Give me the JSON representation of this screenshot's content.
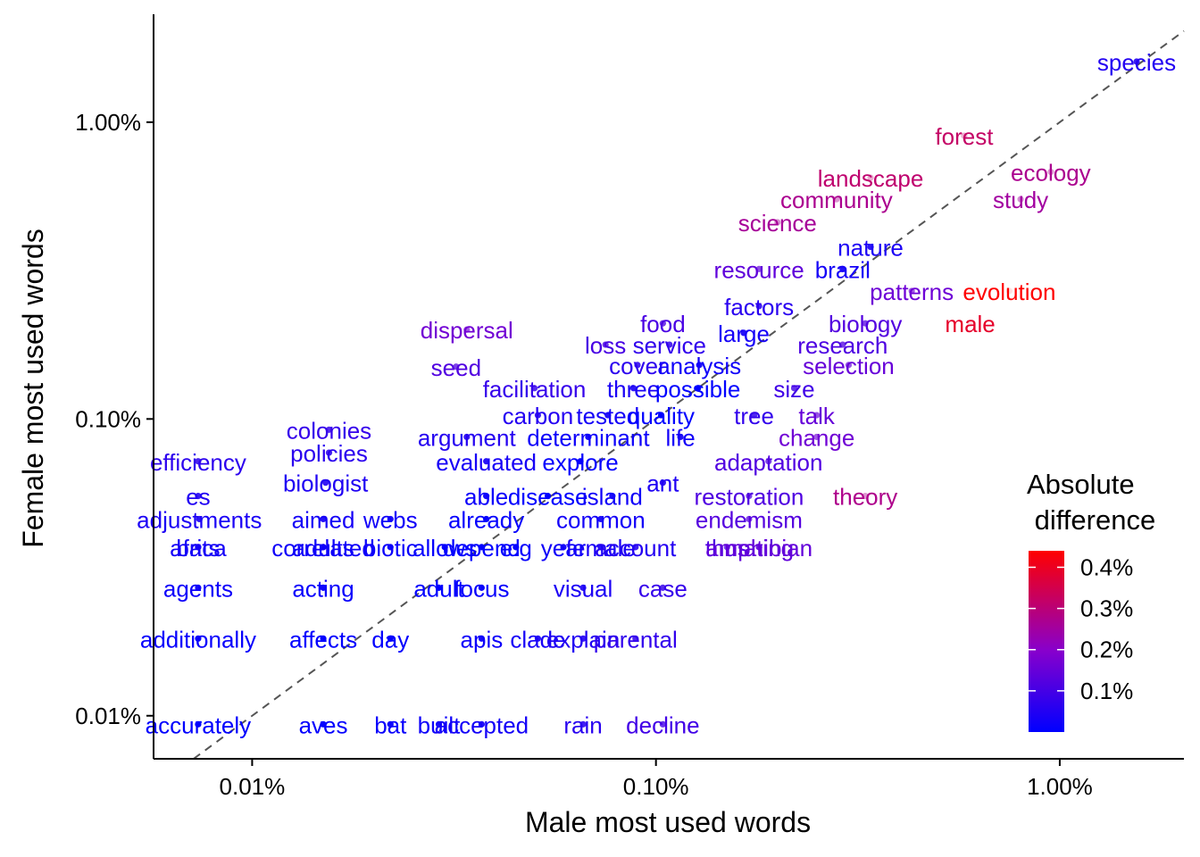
{
  "chart_data": {
    "type": "scatter",
    "xlabel": "Male most used words",
    "ylabel": "Female most used words",
    "x_scale": "log",
    "y_scale": "log",
    "x_ticks": [
      {
        "value": 0.0001,
        "label": "0.01%"
      },
      {
        "value": 0.001,
        "label": "0.10%"
      },
      {
        "value": 0.01,
        "label": "1.00%"
      }
    ],
    "y_ticks": [
      {
        "value": 0.0001,
        "label": "0.01%"
      },
      {
        "value": 0.001,
        "label": "0.10%"
      },
      {
        "value": 0.01,
        "label": "1.00%"
      }
    ],
    "xlim": [
      5.7e-05,
      0.0203
    ],
    "ylim": [
      7.16e-05,
      0.0231
    ],
    "reference_line": "y = x (dashed)",
    "grid": false,
    "legend": {
      "title_lines": [
        "Absolute",
        " difference"
      ],
      "placement": "right-bottom",
      "scale_min": 0.0,
      "scale_max": 0.0044,
      "color_low": "#0000ff",
      "color_mid": "#8800cc",
      "color_high": "#ff0000",
      "ticks": [
        {
          "value": 0.001,
          "label": "0.1%"
        },
        {
          "value": 0.002,
          "label": "0.2%"
        },
        {
          "value": 0.003,
          "label": "0.3%"
        },
        {
          "value": 0.004,
          "label": "0.4%"
        }
      ]
    },
    "points": [
      {
        "word": "species",
        "x": 0.0155,
        "y": 0.016
      },
      {
        "word": "forest",
        "x": 0.0058,
        "y": 0.009
      },
      {
        "word": "landscape",
        "x": 0.0034,
        "y": 0.0065
      },
      {
        "word": "ecology",
        "x": 0.0095,
        "y": 0.0068
      },
      {
        "word": "community",
        "x": 0.0028,
        "y": 0.0055
      },
      {
        "word": "study",
        "x": 0.008,
        "y": 0.0055
      },
      {
        "word": "science",
        "x": 0.002,
        "y": 0.0046
      },
      {
        "word": "nature",
        "x": 0.0034,
        "y": 0.0038
      },
      {
        "word": "resource",
        "x": 0.0018,
        "y": 0.0032
      },
      {
        "word": "brazil",
        "x": 0.0029,
        "y": 0.0032
      },
      {
        "word": "patterns",
        "x": 0.0043,
        "y": 0.0027
      },
      {
        "word": "evolution",
        "x": 0.0075,
        "y": 0.0027
      },
      {
        "word": "factors",
        "x": 0.0018,
        "y": 0.0024
      },
      {
        "word": "biology",
        "x": 0.0033,
        "y": 0.0021
      },
      {
        "word": "male",
        "x": 0.006,
        "y": 0.0021
      },
      {
        "word": "dispersal",
        "x": 0.00034,
        "y": 0.002
      },
      {
        "word": "food",
        "x": 0.00104,
        "y": 0.0021
      },
      {
        "word": "large",
        "x": 0.00165,
        "y": 0.00195
      },
      {
        "word": "loss",
        "x": 0.00075,
        "y": 0.00178
      },
      {
        "word": "service",
        "x": 0.00108,
        "y": 0.00178
      },
      {
        "word": "research",
        "x": 0.0029,
        "y": 0.00178
      },
      {
        "word": "seed",
        "x": 0.00032,
        "y": 0.0015
      },
      {
        "word": "cover",
        "x": 0.0009,
        "y": 0.00152
      },
      {
        "word": "analysis",
        "x": 0.00128,
        "y": 0.00152
      },
      {
        "word": "selection",
        "x": 0.003,
        "y": 0.00152
      },
      {
        "word": "facilitation",
        "x": 0.0005,
        "y": 0.00127
      },
      {
        "word": "three",
        "x": 0.00088,
        "y": 0.00127
      },
      {
        "word": "possible",
        "x": 0.00127,
        "y": 0.00127
      },
      {
        "word": "size",
        "x": 0.0022,
        "y": 0.00127
      },
      {
        "word": "carbon",
        "x": 0.00051,
        "y": 0.00103
      },
      {
        "word": "tested",
        "x": 0.00076,
        "y": 0.00103
      },
      {
        "word": "quality",
        "x": 0.00103,
        "y": 0.00103
      },
      {
        "word": "tree",
        "x": 0.00175,
        "y": 0.00103
      },
      {
        "word": "talk",
        "x": 0.0025,
        "y": 0.00103
      },
      {
        "word": "colonies",
        "x": 0.000155,
        "y": 0.00092
      },
      {
        "word": "argument",
        "x": 0.00034,
        "y": 0.00087
      },
      {
        "word": "determinant",
        "x": 0.00068,
        "y": 0.00087
      },
      {
        "word": "life",
        "x": 0.00115,
        "y": 0.00087
      },
      {
        "word": "change",
        "x": 0.0025,
        "y": 0.00087
      },
      {
        "word": "policies",
        "x": 0.000155,
        "y": 0.00077
      },
      {
        "word": "efficiency",
        "x": 7.35e-05,
        "y": 0.00072
      },
      {
        "word": "evaluated",
        "x": 0.00038,
        "y": 0.00072
      },
      {
        "word": "explore",
        "x": 0.00065,
        "y": 0.00072
      },
      {
        "word": "adaptation",
        "x": 0.0019,
        "y": 0.00072
      },
      {
        "word": "biologist",
        "x": 0.000152,
        "y": 0.00061
      },
      {
        "word": "ant",
        "x": 0.00104,
        "y": 0.00061
      },
      {
        "word": "es",
        "x": 7.35e-05,
        "y": 0.00055
      },
      {
        "word": "able",
        "x": 0.00038,
        "y": 0.00055
      },
      {
        "word": "disease",
        "x": 0.00054,
        "y": 0.00055
      },
      {
        "word": "island",
        "x": 0.00078,
        "y": 0.00055
      },
      {
        "word": "restoration",
        "x": 0.0017,
        "y": 0.00055
      },
      {
        "word": "adjustments",
        "x": 7.4e-05,
        "y": 0.00046
      },
      {
        "word": "aimed",
        "x": 0.00015,
        "y": 0.00046
      },
      {
        "word": "webs",
        "x": 0.00022,
        "y": 0.00046
      },
      {
        "word": "already",
        "x": 0.00038,
        "y": 0.00046
      },
      {
        "word": "common",
        "x": 0.00073,
        "y": 0.00046
      },
      {
        "word": "endemism",
        "x": 0.0017,
        "y": 0.00046
      },
      {
        "word": "theory",
        "x": 0.0033,
        "y": 0.00055
      },
      {
        "word": "bats",
        "x": 7.35e-05,
        "y": 0.00037
      },
      {
        "word": "adults",
        "x": 0.00015,
        "y": 0.00037
      },
      {
        "word": "biotic",
        "x": 0.00022,
        "y": 0.00037
      },
      {
        "word": "depend",
        "x": 0.00037,
        "y": 0.00037
      },
      {
        "word": "female",
        "x": 0.00073,
        "y": 0.00037
      },
      {
        "word": "thus",
        "x": 0.0015,
        "y": 0.00037
      },
      {
        "word": "mating",
        "x": 0.0018,
        "y": 0.00037
      },
      {
        "word": "africa",
        "x": 7.35e-05,
        "y": 0.00037
      },
      {
        "word": "correlated",
        "x": 0.00015,
        "y": 0.00037
      },
      {
        "word": "allows",
        "x": 0.0003,
        "y": 0.00037
      },
      {
        "word": "e.g",
        "x": 0.00045,
        "y": 0.00037
      },
      {
        "word": "year",
        "x": 0.00059,
        "y": 0.00037
      },
      {
        "word": "account",
        "x": 0.00089,
        "y": 0.00037
      },
      {
        "word": "amphibian",
        "x": 0.0018,
        "y": 0.00037
      },
      {
        "word": "agents",
        "x": 7.35e-05,
        "y": 0.00027
      },
      {
        "word": "acting",
        "x": 0.00015,
        "y": 0.00027
      },
      {
        "word": "adult",
        "x": 0.00029,
        "y": 0.00027
      },
      {
        "word": "focus",
        "x": 0.00037,
        "y": 0.00027
      },
      {
        "word": "visual",
        "x": 0.00066,
        "y": 0.00027
      },
      {
        "word": "case",
        "x": 0.00104,
        "y": 0.00027
      },
      {
        "word": "additionally",
        "x": 7.35e-05,
        "y": 0.000182
      },
      {
        "word": "affects",
        "x": 0.00015,
        "y": 0.000182
      },
      {
        "word": "day",
        "x": 0.00022,
        "y": 0.000182
      },
      {
        "word": "apis",
        "x": 0.00037,
        "y": 0.000182
      },
      {
        "word": "clade",
        "x": 0.00051,
        "y": 0.000182
      },
      {
        "word": "explain",
        "x": 0.00066,
        "y": 0.000182
      },
      {
        "word": "parental",
        "x": 0.00089,
        "y": 0.000182
      },
      {
        "word": "accurately",
        "x": 7.35e-05,
        "y": 9.36e-05
      },
      {
        "word": "aves",
        "x": 0.00015,
        "y": 9.36e-05
      },
      {
        "word": "bat",
        "x": 0.00022,
        "y": 9.36e-05
      },
      {
        "word": "built",
        "x": 0.00029,
        "y": 9.36e-05
      },
      {
        "word": "accepted",
        "x": 0.00037,
        "y": 9.36e-05
      },
      {
        "word": "rain",
        "x": 0.00066,
        "y": 9.36e-05
      },
      {
        "word": "decline",
        "x": 0.00104,
        "y": 9.36e-05
      }
    ]
  }
}
